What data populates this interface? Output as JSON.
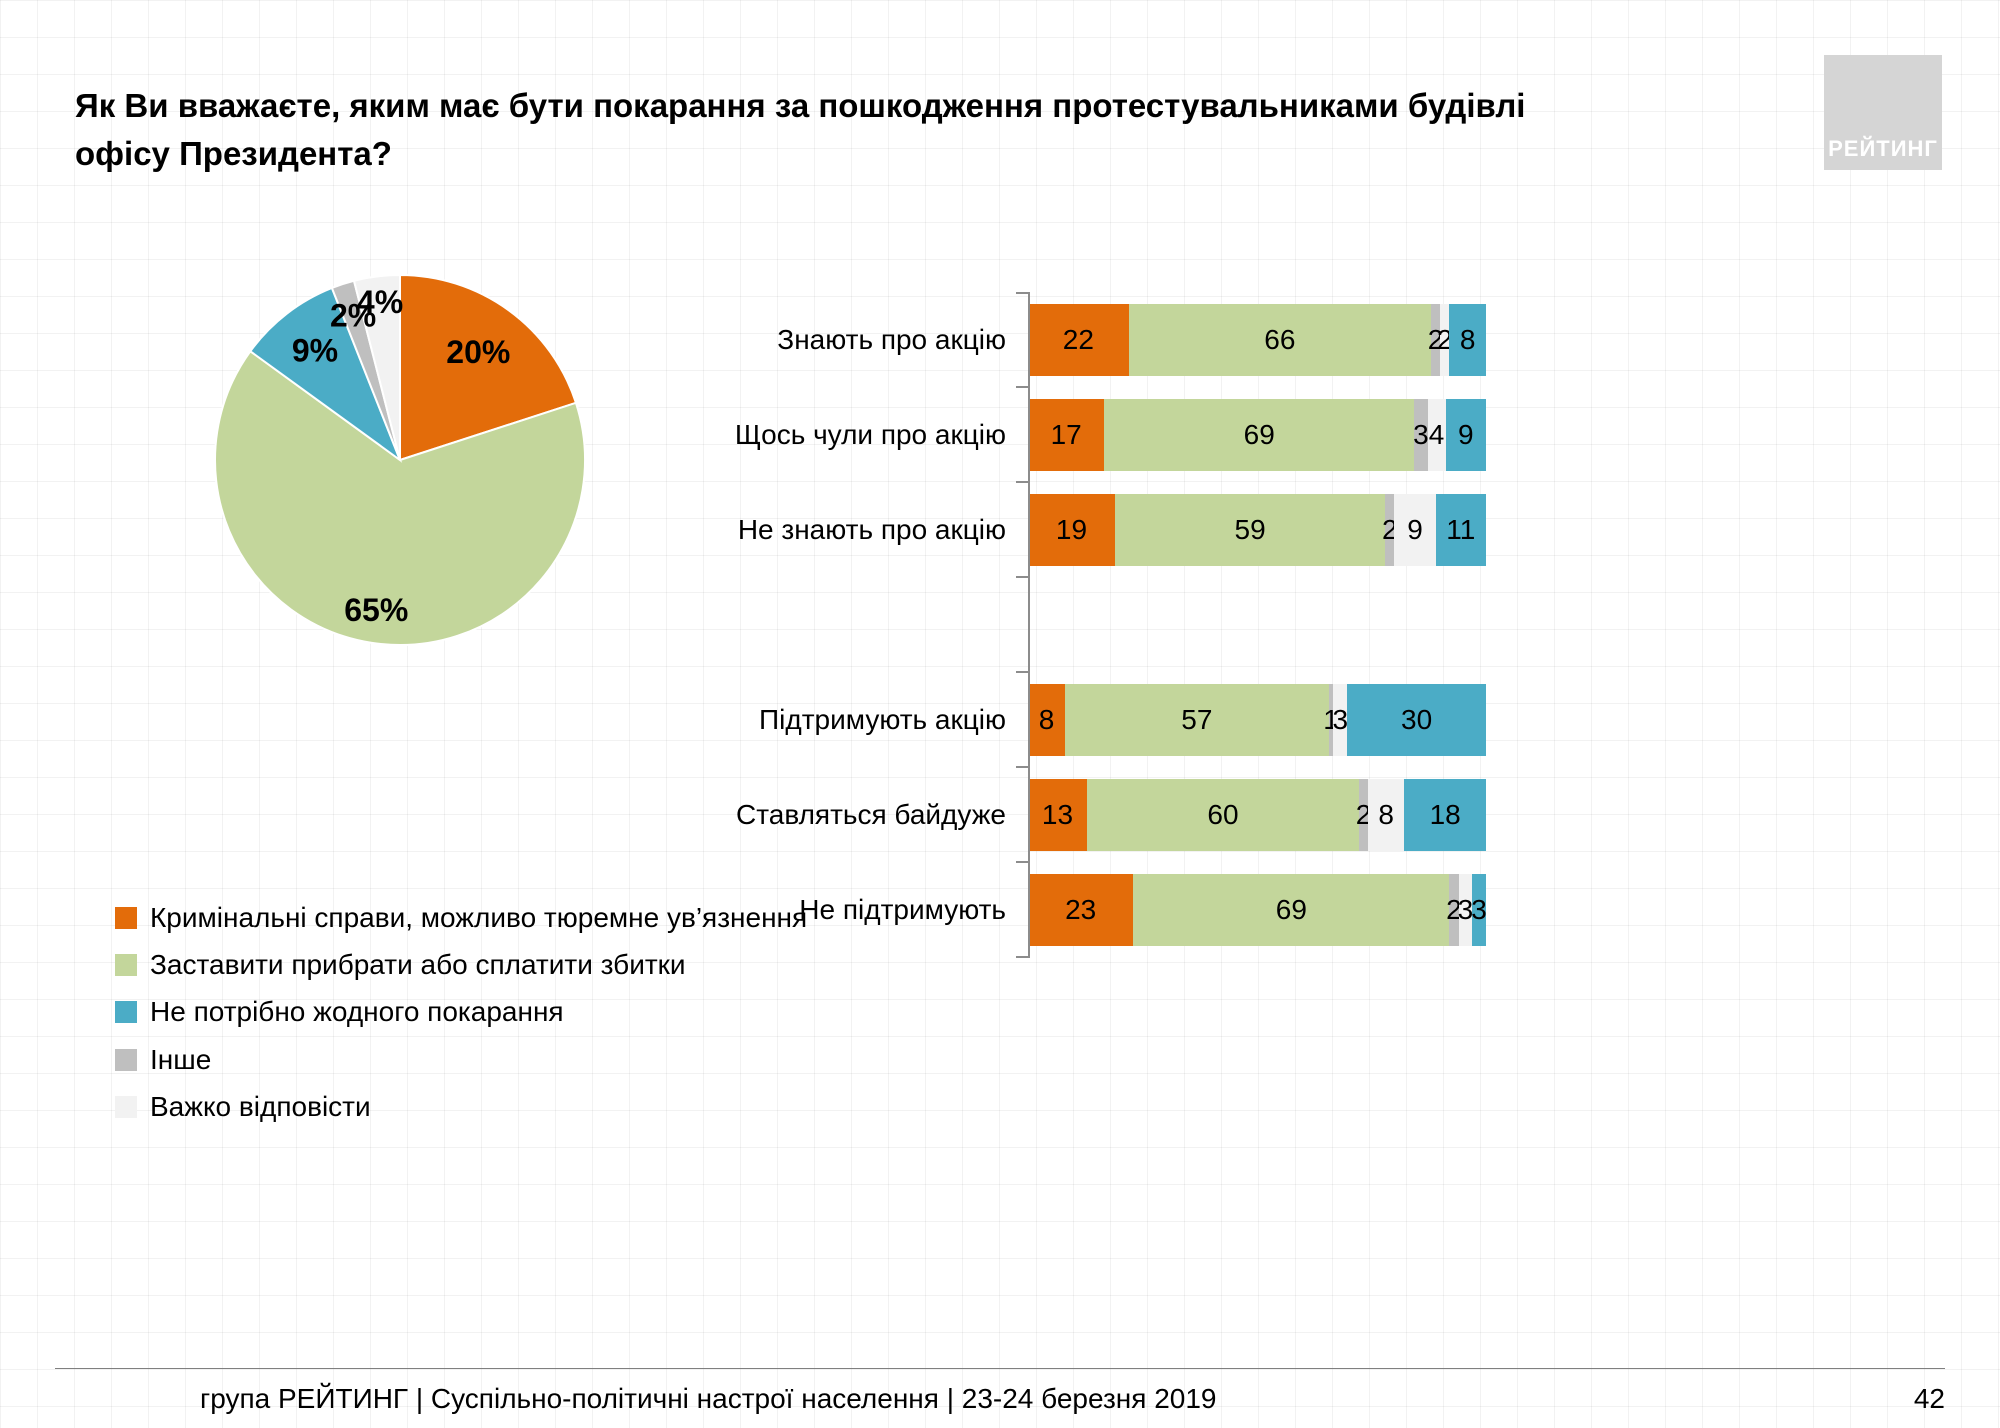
{
  "slide": {
    "title_line1": "Як Ви вважаєте, яким має бути покарання за пошкодження протестувальниками будівлі",
    "title_line2": "офісу Президента?",
    "logo_text": "РЕЙТИНГ",
    "footer_text": "група РЕЙТИНГ | Суспільно-політичні настрої населення  | 23-24 березня 2019",
    "page_number": "42"
  },
  "colors": {
    "criminal_orange": "#E36C0A",
    "cleanup_green": "#C3D69B",
    "no_punishment_blue": "#4BACC6",
    "other_gray": "#BFBFBF",
    "hard_to_answer_white": "#F2F2F2",
    "axis_gray": "#8C8C8C",
    "background": "#FFFFFF"
  },
  "legend": {
    "items": [
      {
        "label": "Кримінальні справи, можливо тюремне ув’язнення",
        "color": "#E36C0A"
      },
      {
        "label": "Заставити прибрати або сплатити збитки",
        "color": "#C3D69B"
      },
      {
        "label": "Не потрібно жодного покарання",
        "color": "#4BACC6"
      },
      {
        "label": "Інше",
        "color": "#BFBFBF"
      },
      {
        "label": "Важко відповісти",
        "color": "#F2F2F2"
      }
    ]
  },
  "chart_data": [
    {
      "type": "pie",
      "labels": [
        "Кримінальні справи, можливо тюремне ув’язнення",
        "Заставити прибрати або сплатити збитки",
        "Не потрібно жодного покарання",
        "Інше",
        "Важко відповісти"
      ],
      "values": [
        20,
        65,
        9,
        2,
        4
      ],
      "value_labels": [
        "20%",
        "65%",
        "9%",
        "2%",
        "4%"
      ],
      "colors": [
        "#E36C0A",
        "#C3D69B",
        "#4BACC6",
        "#BFBFBF",
        "#F2F2F2"
      ],
      "start_angle_deg": 0,
      "direction": "clockwise",
      "legend_position": "bottom-left"
    },
    {
      "type": "bar",
      "stacked": true,
      "orientation": "horizontal",
      "xlim": [
        0,
        100
      ],
      "grid": false,
      "categories": [
        "Знають про акцію",
        "Щось чули про акцію",
        "Не знають про акцію",
        "Підтримують акцію",
        "Ставляться байдуже",
        "Не підтримують"
      ],
      "group_break_before_index": 3,
      "series": [
        {
          "name": "Кримінальні справи, можливо тюремне ув’язнення",
          "color": "#E36C0A",
          "values": [
            22,
            17,
            19,
            8,
            13,
            23
          ]
        },
        {
          "name": "Заставити прибрати або сплатити збитки",
          "color": "#C3D69B",
          "values": [
            66,
            69,
            59,
            57,
            60,
            69
          ]
        },
        {
          "name": "Інше",
          "color": "#BFBFBF",
          "values": [
            2,
            3,
            2,
            1,
            2,
            2
          ]
        },
        {
          "name": "Важко відповісти",
          "color": "#F2F2F2",
          "values": [
            2,
            4,
            9,
            3,
            8,
            3
          ]
        },
        {
          "name": "Не потрібно жодного покарання",
          "color": "#4BACC6",
          "values": [
            8,
            9,
            11,
            30,
            18,
            3
          ]
        }
      ]
    }
  ]
}
